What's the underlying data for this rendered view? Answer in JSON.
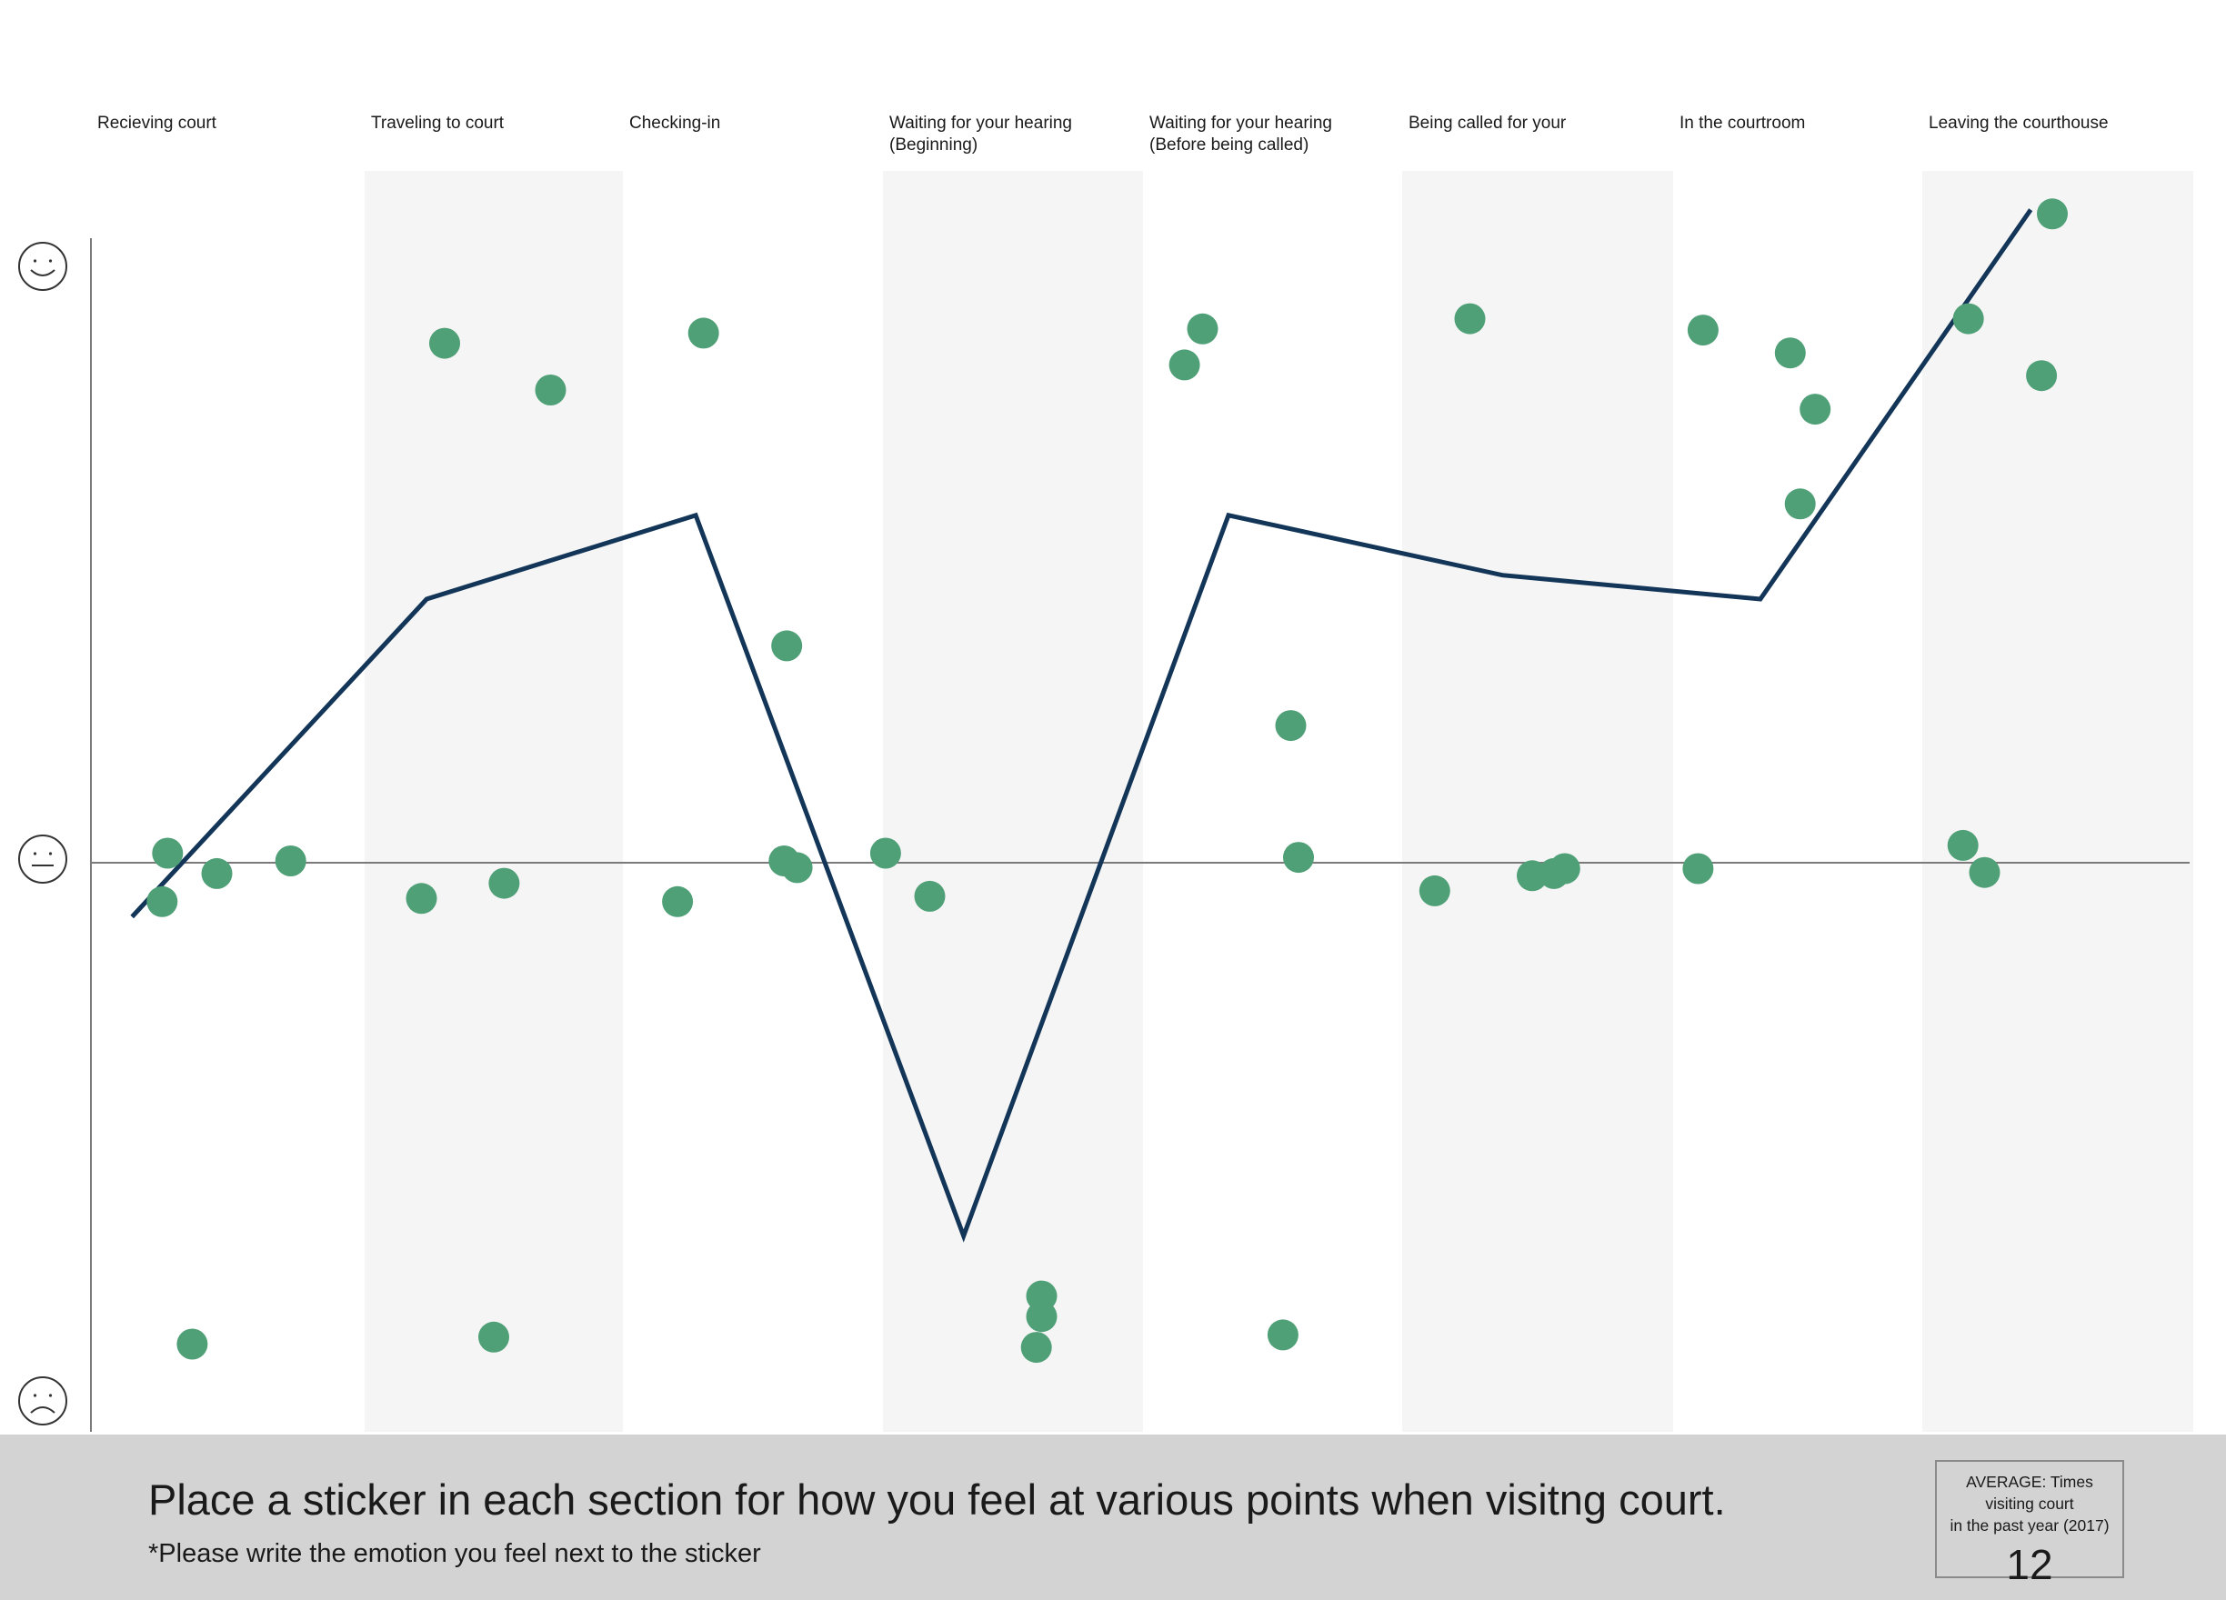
{
  "chart_data": {
    "type": "line",
    "title": "",
    "stages": [
      "Recieving court",
      "Traveling to court",
      "Checking-in",
      "Waiting for your hearing\n(Beginning)",
      "Waiting for your hearing\n(Before being called)",
      "Being called for your",
      "In the courtroom",
      "Leaving the courthouse"
    ],
    "ylim": [
      -1,
      1
    ],
    "y_scale_labels": [
      "happy",
      "neutral",
      "sad"
    ],
    "average_line": {
      "name": "",
      "values": [
        -0.1,
        0.44,
        0.58,
        -0.69,
        0.58,
        0.48,
        0.44,
        1.09
      ]
    },
    "stickers": [
      {
        "stage": 0,
        "x": 0.28,
        "y": 0.016
      },
      {
        "stage": 0,
        "x": 0.26,
        "y": -0.072
      },
      {
        "stage": 0,
        "x": 0.46,
        "y": -0.02
      },
      {
        "stage": 0,
        "x": 0.73,
        "y": 0.003
      },
      {
        "stage": 0,
        "x": 0.37,
        "y": -0.89
      },
      {
        "stage": 1,
        "x": 0.31,
        "y": 0.867
      },
      {
        "stage": 1,
        "x": 0.72,
        "y": 0.789
      },
      {
        "stage": 1,
        "x": 0.22,
        "y": -0.066
      },
      {
        "stage": 1,
        "x": 0.54,
        "y": -0.038
      },
      {
        "stage": 1,
        "x": 0.5,
        "y": -0.877
      },
      {
        "stage": 2,
        "x": 0.31,
        "y": 0.884
      },
      {
        "stage": 2,
        "x": 0.63,
        "y": 0.362
      },
      {
        "stage": 2,
        "x": 0.62,
        "y": 0.003
      },
      {
        "stage": 2,
        "x": 0.67,
        "y": -0.009
      },
      {
        "stage": 2,
        "x": 0.21,
        "y": -0.072
      },
      {
        "stage": 3,
        "x": 0.01,
        "y": 0.016
      },
      {
        "stage": 3,
        "x": 0.18,
        "y": -0.062
      },
      {
        "stage": 3,
        "x": 0.61,
        "y": -0.801
      },
      {
        "stage": 3,
        "x": 0.61,
        "y": -0.839
      },
      {
        "stage": 3,
        "x": 0.59,
        "y": -0.896
      },
      {
        "stage": 4,
        "x": 0.23,
        "y": 0.891
      },
      {
        "stage": 4,
        "x": 0.16,
        "y": 0.831
      },
      {
        "stage": 4,
        "x": 0.57,
        "y": 0.229
      },
      {
        "stage": 4,
        "x": 0.6,
        "y": 0.009
      },
      {
        "stage": 4,
        "x": 0.54,
        "y": -0.873
      },
      {
        "stage": 5,
        "x": 0.25,
        "y": 0.908
      },
      {
        "stage": 5,
        "x": 0.12,
        "y": -0.052
      },
      {
        "stage": 5,
        "x": 0.48,
        "y": -0.024
      },
      {
        "stage": 5,
        "x": 0.56,
        "y": -0.02
      },
      {
        "stage": 5,
        "x": 0.6,
        "y": -0.011
      },
      {
        "stage": 6,
        "x": 0.12,
        "y": 0.889
      },
      {
        "stage": 6,
        "x": 0.47,
        "y": 0.851
      },
      {
        "stage": 6,
        "x": 0.57,
        "y": 0.757
      },
      {
        "stage": 6,
        "x": 0.51,
        "y": 0.599
      },
      {
        "stage": 6,
        "x": 0.1,
        "y": -0.011
      },
      {
        "stage": 7,
        "x": 0.48,
        "y": 1.083
      },
      {
        "stage": 7,
        "x": 0.17,
        "y": 0.908
      },
      {
        "stage": 7,
        "x": 0.44,
        "y": 0.813
      },
      {
        "stage": 7,
        "x": 0.15,
        "y": 0.029
      },
      {
        "stage": 7,
        "x": 0.23,
        "y": -0.018
      }
    ],
    "colors": {
      "line": "#123558",
      "sticker": "#4f9f77",
      "shaded_column": "#f5f5f5",
      "axis": "#7a7a7a"
    },
    "grid": false,
    "legend": "none"
  },
  "footer": {
    "instruction": "Place a sticker in each section for how you feel at various points when visitng court.",
    "note": "*Please write the emotion you feel next to the sticker"
  },
  "stat": {
    "caption": "AVERAGE: Times visiting court\nin the past year (2017)",
    "value": "12"
  }
}
